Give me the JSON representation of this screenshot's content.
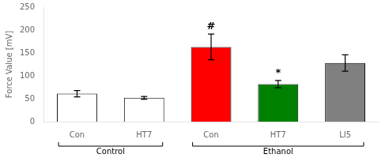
{
  "chart_data": {
    "type": "bar",
    "categories": [
      "Con",
      "HT7",
      "Con",
      "HT7",
      "LI5"
    ],
    "values": [
      61,
      52,
      163,
      82,
      128
    ],
    "errors": [
      7,
      3,
      28,
      8,
      18
    ],
    "colors": [
      "#ffffff",
      "#ffffff",
      "#ff0000",
      "#008000",
      "#808080"
    ],
    "ylabel": "Force Value [mV]",
    "ylim": [
      0,
      250
    ],
    "yticks": [
      0,
      50,
      100,
      150,
      200,
      250
    ],
    "grid": false,
    "annotations": [
      {
        "text": "#",
        "index": 2
      },
      {
        "text": "*",
        "index": 3
      }
    ],
    "groups": [
      {
        "label": "Control",
        "start": 0,
        "end": 1
      },
      {
        "label": "Ethanol",
        "start": 2,
        "end": 4
      }
    ]
  }
}
